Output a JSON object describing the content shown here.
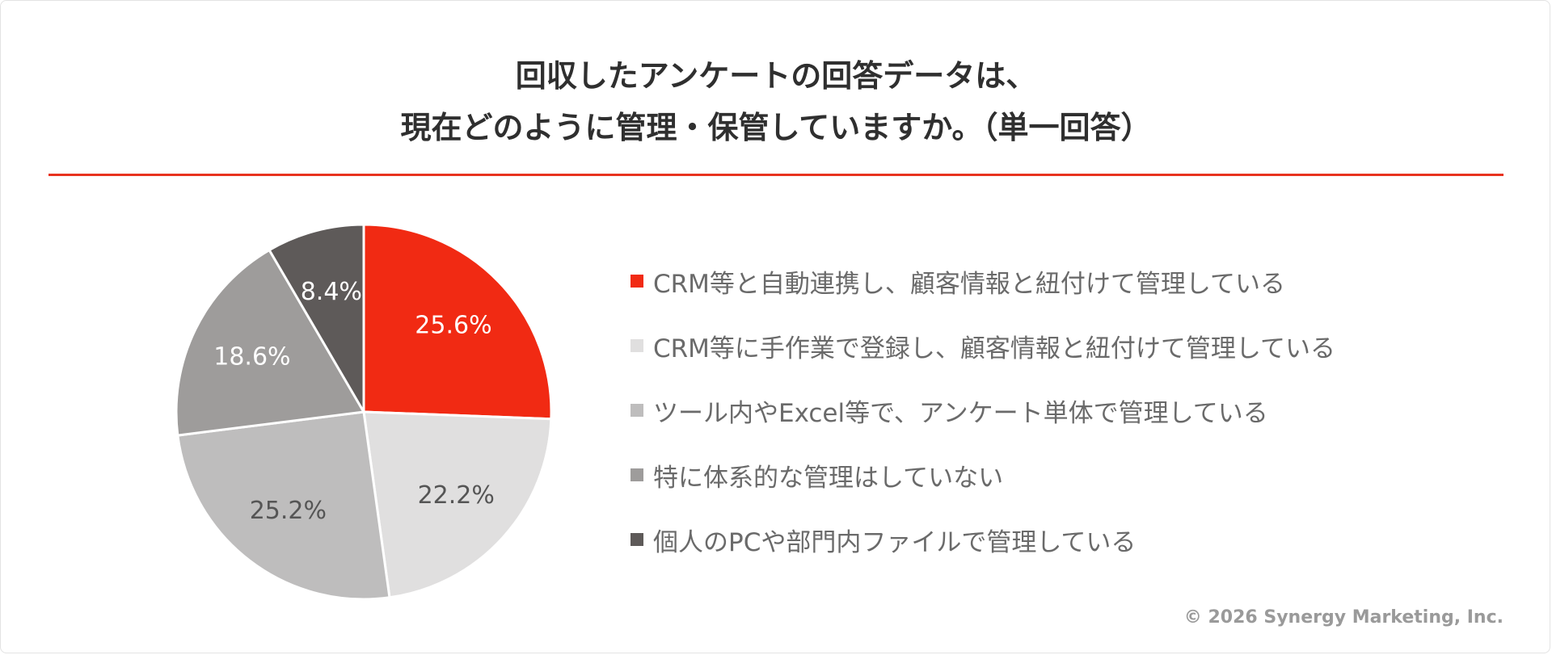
{
  "title_lines": [
    "回収したアンケートの回答データは、",
    "現在どのように管理・保管していますか。（単一回答）"
  ],
  "copyright": "© 2026 Synergy Marketing, Inc.",
  "accent_color": "#e8321e",
  "chart_data": {
    "type": "pie",
    "categories": [
      "CRM等と自動連携し、顧客情報と紐付けて管理している",
      "CRM等に手作業で登録し、顧客情報と紐付けて管理している",
      "ツール内やExcel等で、アンケート単体で管理している",
      "特に体系的な管理はしていない",
      "個人のPCや部門内ファイルで管理している"
    ],
    "values": [
      25.6,
      22.2,
      25.2,
      18.6,
      8.4
    ],
    "data_labels": [
      "25.6%",
      "22.2%",
      "25.2%",
      "18.6%",
      "8.4%"
    ],
    "colors": [
      "#f12a13",
      "#e0dfdf",
      "#bebdbd",
      "#9e9c9b",
      "#5e5a59"
    ],
    "label_colors": [
      "#ffffff",
      "#555555",
      "#555555",
      "#ffffff",
      "#ffffff"
    ],
    "start_angle": "12 o'clock",
    "direction": "clockwise",
    "legend_position": "right"
  }
}
